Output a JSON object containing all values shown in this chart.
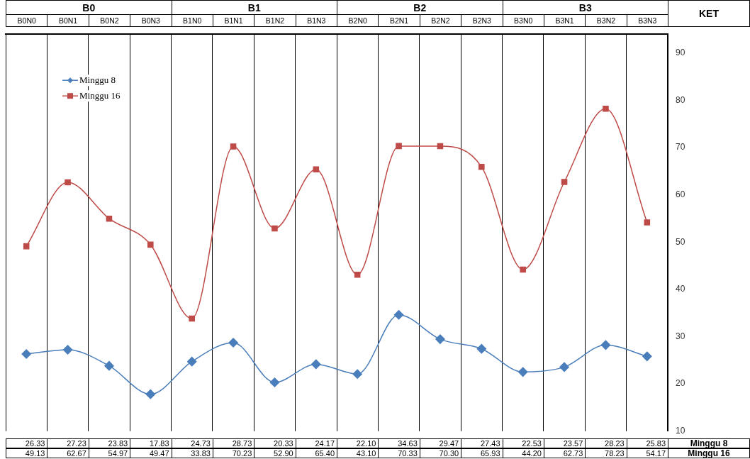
{
  "chart_data": {
    "type": "line",
    "annotations": [
      "B0",
      "B1",
      "B2",
      "B3",
      "KET"
    ],
    "categories": [
      "B0N0",
      "B0N1",
      "B0N2",
      "B0N3",
      "B1N0",
      "B1N1",
      "B1N2",
      "B1N3",
      "B2N0",
      "B2N1",
      "B2N2",
      "B2N3",
      "B3N0",
      "B3N1",
      "B3N2",
      "B3N3"
    ],
    "series": [
      {
        "name": "Minggu 8",
        "color": "#4a7ebb",
        "marker": "diamond",
        "values": [
          26.33,
          27.23,
          23.83,
          17.83,
          24.73,
          28.73,
          20.33,
          24.17,
          22.1,
          34.63,
          29.47,
          27.43,
          22.53,
          23.57,
          28.23,
          25.83
        ],
        "value_labels": [
          "26.33",
          "27.23",
          "23.83",
          "17.83",
          "24.73",
          "28.73",
          "20.33",
          "24.17",
          "22.10",
          "34.63",
          "29.47",
          "27.43",
          "22.53",
          "23.57",
          "28.23",
          "25.83"
        ]
      },
      {
        "name": "Minggu 16",
        "color": "#be4b48",
        "marker": "square",
        "values": [
          49.13,
          62.67,
          54.97,
          49.47,
          33.83,
          70.23,
          52.9,
          65.4,
          43.1,
          70.33,
          70.3,
          65.93,
          44.2,
          62.73,
          78.23,
          54.17
        ],
        "value_labels": [
          "49.13",
          "62.67",
          "54.97",
          "49.47",
          "33.83",
          "70.23",
          "52.90",
          "65.40",
          "43.10",
          "70.33",
          "70.30",
          "65.93",
          "44.20",
          "62.73",
          "78.23",
          "54.17"
        ]
      }
    ],
    "ylim": [
      10,
      94
    ],
    "yticks": [
      10,
      20,
      30,
      40,
      50,
      60,
      70,
      80,
      90
    ],
    "grid": "x",
    "legend": "top left"
  }
}
